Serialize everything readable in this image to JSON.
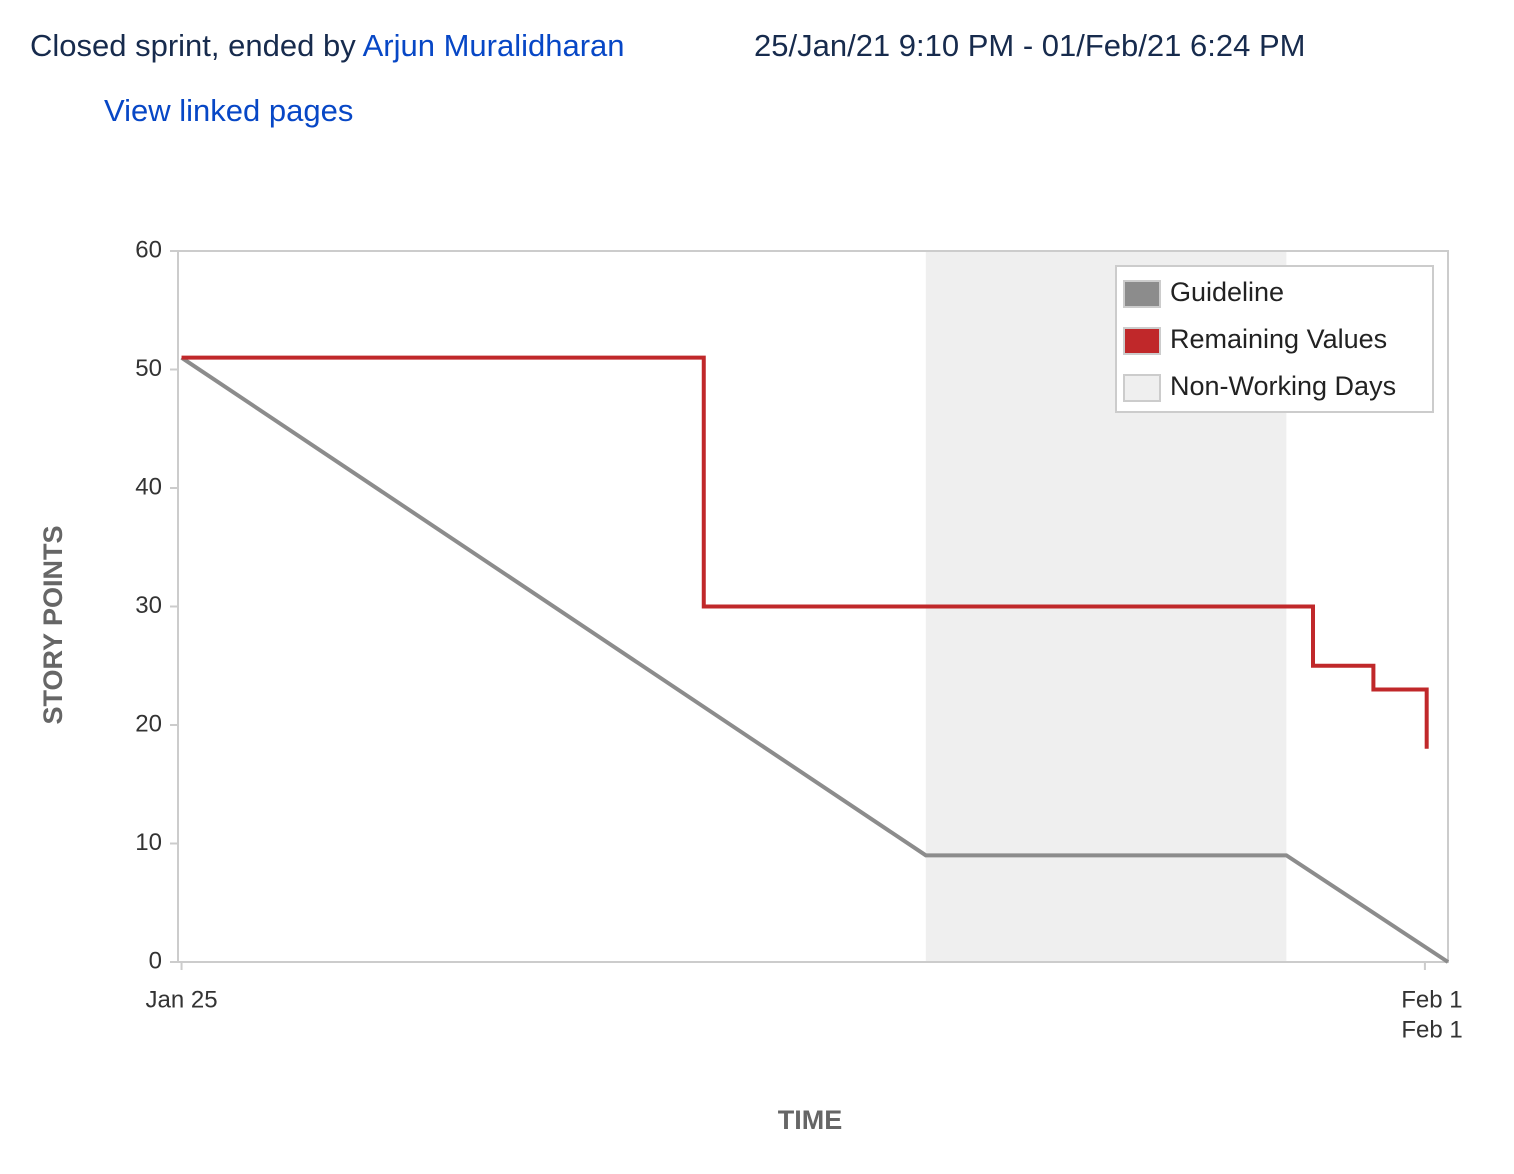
{
  "header": {
    "status": "Closed sprint, ended by",
    "user": "Arjun Muralidharan",
    "dates": "25/Jan/21 9:10 PM - 01/Feb/21 6:24 PM",
    "link": "View linked pages"
  },
  "chart_data": {
    "type": "line",
    "xlabel": "TIME",
    "ylabel": "STORY POINTS",
    "xlim": [
      -0.02,
      7.13
    ],
    "xticks": [
      {
        "value": 0,
        "label": "Jan 25"
      },
      {
        "value": 7,
        "label": "Feb 1"
      }
    ],
    "end_label": "Feb 1",
    "ylim": [
      0,
      60
    ],
    "yticks": [
      0,
      10,
      20,
      30,
      40,
      50,
      60
    ],
    "grid": false,
    "legend": "upper right",
    "shaded": {
      "name": "Non-Working Days",
      "color": "#efefef",
      "x": [
        4.19,
        6.22
      ]
    },
    "series": [
      {
        "name": "Guideline",
        "color": "#8c8c8c",
        "x": [
          0,
          4.19,
          6.22,
          7.13
        ],
        "values": [
          51,
          9,
          9,
          0
        ]
      },
      {
        "name": "Remaining Values",
        "color": "#c0282a",
        "x": [
          0,
          2.94,
          2.94,
          6.37,
          6.37,
          6.71,
          6.71,
          7.01,
          7.01
        ],
        "values": [
          51,
          51,
          30,
          30,
          25,
          25,
          23,
          23,
          18
        ]
      }
    ]
  }
}
